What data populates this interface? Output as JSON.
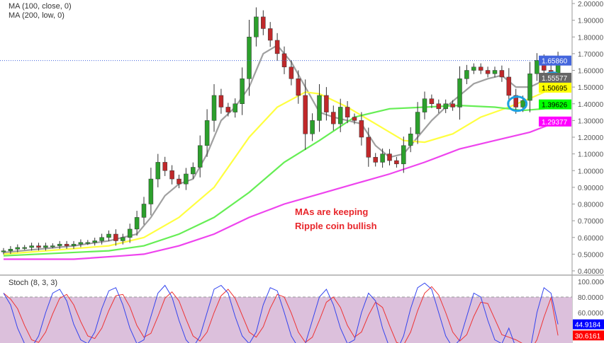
{
  "legend": {
    "ma1": "MA (100, close, 0)",
    "ma2": "MA (200, low, 0)",
    "stoch": "Stoch (8, 3, 3)"
  },
  "annotation": {
    "line1": "MAs are keeping",
    "line2": "Ripple coin bullish",
    "color": "#e8262b"
  },
  "chart_data": [
    {
      "type": "candlestick",
      "ylim": [
        0.4,
        2.0
      ],
      "yticks": [
        "2.00000",
        "1.90000",
        "1.80000",
        "1.70000",
        "1.60000",
        "1.50000",
        "1.40000",
        "1.30000",
        "1.20000",
        "1.10000",
        "1.00000",
        "0.90000",
        "0.80000",
        "0.70000",
        "0.60000",
        "0.50000",
        "0.40000"
      ],
      "closes": [
        0.52,
        0.53,
        0.54,
        0.54,
        0.55,
        0.54,
        0.55,
        0.55,
        0.56,
        0.55,
        0.56,
        0.57,
        0.57,
        0.58,
        0.6,
        0.62,
        0.58,
        0.6,
        0.65,
        0.72,
        0.8,
        0.95,
        1.05,
        1.0,
        0.95,
        0.92,
        0.98,
        1.02,
        1.15,
        1.3,
        1.45,
        1.38,
        1.35,
        1.4,
        1.55,
        1.8,
        1.92,
        1.85,
        1.78,
        1.7,
        1.62,
        1.55,
        1.45,
        1.22,
        1.3,
        1.45,
        1.35,
        1.28,
        1.38,
        1.32,
        1.3,
        1.2,
        1.08,
        1.05,
        1.1,
        1.06,
        1.04,
        1.15,
        1.22,
        1.35,
        1.43,
        1.4,
        1.37,
        1.4,
        1.38,
        1.55,
        1.6,
        1.62,
        1.6,
        1.58,
        1.6,
        1.56,
        1.45,
        1.38,
        1.42,
        1.58,
        1.66,
        1.6,
        1.55,
        1.6586
      ],
      "moving_averages": [
        {
          "color": "#a0a0a0",
          "points": [
            [
              0,
              0.51
            ],
            [
              10,
              0.55
            ],
            [
              15,
              0.58
            ],
            [
              19,
              0.62
            ],
            [
              21,
              0.72
            ],
            [
              23,
              0.85
            ],
            [
              25,
              0.92
            ],
            [
              27,
              0.95
            ],
            [
              29,
              1.1
            ],
            [
              31,
              1.3
            ],
            [
              33,
              1.38
            ],
            [
              35,
              1.5
            ],
            [
              37,
              1.7
            ],
            [
              39,
              1.75
            ],
            [
              41,
              1.65
            ],
            [
              43,
              1.5
            ],
            [
              45,
              1.35
            ],
            [
              47,
              1.32
            ],
            [
              49,
              1.3
            ],
            [
              51,
              1.28
            ],
            [
              53,
              1.15
            ],
            [
              55,
              1.08
            ],
            [
              57,
              1.1
            ],
            [
              59,
              1.2
            ],
            [
              61,
              1.3
            ],
            [
              63,
              1.38
            ],
            [
              65,
              1.45
            ],
            [
              67,
              1.52
            ],
            [
              69,
              1.55
            ],
            [
              71,
              1.57
            ],
            [
              73,
              1.5
            ],
            [
              75,
              1.5
            ],
            [
              77,
              1.54
            ],
            [
              79,
              1.55577
            ]
          ],
          "label": "1.55577",
          "label_bg": "#666666",
          "label_fg": "#ffffff"
        },
        {
          "color": "#ffff40",
          "points": [
            [
              0,
              0.5
            ],
            [
              15,
              0.55
            ],
            [
              20,
              0.6
            ],
            [
              25,
              0.72
            ],
            [
              30,
              0.9
            ],
            [
              35,
              1.2
            ],
            [
              39,
              1.38
            ],
            [
              43,
              1.47
            ],
            [
              45,
              1.46
            ],
            [
              49,
              1.38
            ],
            [
              53,
              1.28
            ],
            [
              57,
              1.18
            ],
            [
              60,
              1.17
            ],
            [
              64,
              1.22
            ],
            [
              68,
              1.32
            ],
            [
              72,
              1.38
            ],
            [
              76,
              1.45
            ],
            [
              79,
              1.50695
            ]
          ],
          "label": "1.50695",
          "label_bg": "#ffff00",
          "label_fg": "#000000"
        },
        {
          "color": "#66ee55",
          "points": [
            [
              0,
              0.49
            ],
            [
              15,
              0.52
            ],
            [
              20,
              0.55
            ],
            [
              25,
              0.62
            ],
            [
              30,
              0.72
            ],
            [
              35,
              0.87
            ],
            [
              40,
              1.05
            ],
            [
              45,
              1.18
            ],
            [
              50,
              1.32
            ],
            [
              55,
              1.37
            ],
            [
              60,
              1.38
            ],
            [
              65,
              1.39
            ],
            [
              70,
              1.38
            ],
            [
              74,
              1.36
            ],
            [
              77,
              1.37
            ],
            [
              79,
              1.39626
            ]
          ],
          "label": "1.39626",
          "label_bg": "#00ff00",
          "label_fg": "#000000"
        },
        {
          "color": "#ee44ee",
          "points": [
            [
              0,
              0.47
            ],
            [
              10,
              0.47
            ],
            [
              17,
              0.49
            ],
            [
              20,
              0.5
            ],
            [
              25,
              0.55
            ],
            [
              30,
              0.62
            ],
            [
              35,
              0.72
            ],
            [
              40,
              0.8
            ],
            [
              45,
              0.86
            ],
            [
              50,
              0.92
            ],
            [
              55,
              0.98
            ],
            [
              60,
              1.05
            ],
            [
              65,
              1.13
            ],
            [
              70,
              1.18
            ],
            [
              75,
              1.23
            ],
            [
              79,
              1.29377
            ]
          ],
          "label": "1.29377",
          "label_bg": "#ff00ff",
          "label_fg": "#ffffff"
        }
      ],
      "last_price": {
        "value": 1.6586,
        "label": "1.65860",
        "color": "#4466dd"
      },
      "highlights": [
        {
          "index": 73,
          "price": 1.4
        },
        {
          "index": 78,
          "price": 1.545
        }
      ],
      "up_color": "#2ca02c",
      "down_color": "#c0282a"
    },
    {
      "type": "line",
      "title": "Stoch (8, 3, 3)",
      "ylim": [
        0,
        100
      ],
      "yticks": [
        "100.0000",
        "80.0000",
        "60.0000"
      ],
      "levels": [
        80,
        20
      ],
      "k": [
        85,
        70,
        40,
        20,
        15,
        30,
        60,
        85,
        90,
        75,
        45,
        25,
        20,
        35,
        65,
        88,
        92,
        70,
        40,
        20,
        25,
        55,
        85,
        95,
        80,
        50,
        25,
        15,
        30,
        60,
        90,
        95,
        85,
        55,
        30,
        20,
        35,
        70,
        92,
        88,
        60,
        30,
        15,
        20,
        50,
        80,
        90,
        70,
        40,
        20,
        25,
        60,
        85,
        75,
        40,
        15,
        10,
        30,
        65,
        92,
        98,
        90,
        60,
        30,
        15,
        25,
        55,
        85,
        80,
        50,
        25,
        20,
        40,
        15,
        5,
        10,
        60,
        92,
        85,
        44.9184
      ],
      "k_label": "44.9184",
      "d_label": "30.6161",
      "k_color": "#3344ee",
      "d_color": "#ee3333"
    }
  ]
}
